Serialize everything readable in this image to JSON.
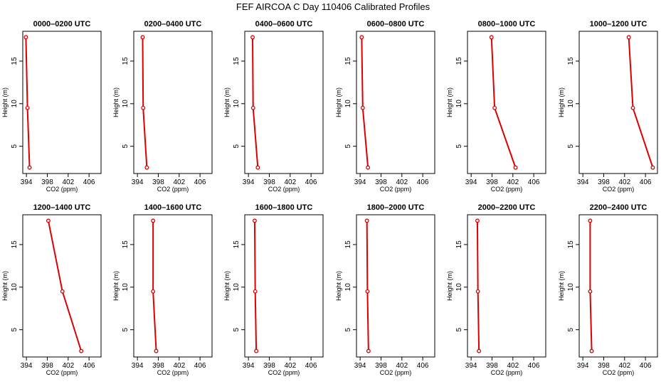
{
  "figure_title": "FEF AIRCOA C  Day 110406  Calibrated Profiles",
  "colors": {
    "profile": "#dd0000",
    "axis": "#000000"
  },
  "chart_data": [
    {
      "type": "line",
      "title": "0000–0200 UTC",
      "xlabel": "CO2 (ppm)",
      "ylabel": "Height (m)",
      "x": [
        393.9,
        394.2,
        394.6
      ],
      "y": [
        17.8,
        9.5,
        2.5
      ]
    },
    {
      "type": "line",
      "title": "0200–0400 UTC",
      "xlabel": "CO2 (ppm)",
      "ylabel": "Height (m)",
      "x": [
        395.0,
        395.1,
        395.8
      ],
      "y": [
        17.8,
        9.5,
        2.5
      ]
    },
    {
      "type": "line",
      "title": "0400–0600 UTC",
      "xlabel": "CO2 (ppm)",
      "ylabel": "Height (m)",
      "x": [
        394.8,
        394.9,
        395.8
      ],
      "y": [
        17.8,
        9.5,
        2.5
      ]
    },
    {
      "type": "line",
      "title": "0600–0800 UTC",
      "xlabel": "CO2 (ppm)",
      "ylabel": "Height (m)",
      "x": [
        394.3,
        394.5,
        395.5
      ],
      "y": [
        17.8,
        9.5,
        2.5
      ]
    },
    {
      "type": "line",
      "title": "0800–1000 UTC",
      "xlabel": "CO2 (ppm)",
      "ylabel": "Height (m)",
      "x": [
        397.9,
        398.5,
        402.5
      ],
      "y": [
        17.8,
        9.5,
        2.5
      ]
    },
    {
      "type": "line",
      "title": "1000–1200 UTC",
      "xlabel": "CO2 (ppm)",
      "ylabel": "Height (m)",
      "x": [
        402.8,
        403.6,
        407.4
      ],
      "y": [
        17.8,
        9.5,
        2.5
      ]
    },
    {
      "type": "line",
      "title": "1200–1400 UTC",
      "xlabel": "CO2 (ppm)",
      "ylabel": "Height (m)",
      "x": [
        398.2,
        400.9,
        404.5
      ],
      "y": [
        17.8,
        9.5,
        2.5
      ]
    },
    {
      "type": "line",
      "title": "1400–1600 UTC",
      "xlabel": "CO2 (ppm)",
      "ylabel": "Height (m)",
      "x": [
        397.0,
        397.0,
        397.6
      ],
      "y": [
        17.8,
        9.5,
        2.5
      ]
    },
    {
      "type": "line",
      "title": "1600–1800 UTC",
      "xlabel": "CO2 (ppm)",
      "ylabel": "Height (m)",
      "x": [
        395.2,
        395.3,
        395.5
      ],
      "y": [
        17.8,
        9.5,
        2.5
      ]
    },
    {
      "type": "line",
      "title": "1800–2000 UTC",
      "xlabel": "CO2 (ppm)",
      "ylabel": "Height (m)",
      "x": [
        395.3,
        395.4,
        395.6
      ],
      "y": [
        17.8,
        9.5,
        2.5
      ]
    },
    {
      "type": "line",
      "title": "2000–2200 UTC",
      "xlabel": "CO2 (ppm)",
      "ylabel": "Height (m)",
      "x": [
        395.2,
        395.3,
        395.5
      ],
      "y": [
        17.8,
        9.5,
        2.5
      ]
    },
    {
      "type": "line",
      "title": "2200–2400 UTC",
      "xlabel": "CO2 (ppm)",
      "ylabel": "Height (m)",
      "x": [
        395.4,
        395.4,
        395.7
      ],
      "y": [
        17.8,
        9.5,
        2.5
      ]
    }
  ],
  "axes": {
    "xlim": [
      393.3,
      408.3
    ],
    "ylim": [
      1.8,
      18.5
    ],
    "xticks": [
      394,
      398,
      402,
      406
    ],
    "yticks": [
      5,
      10,
      15
    ]
  }
}
